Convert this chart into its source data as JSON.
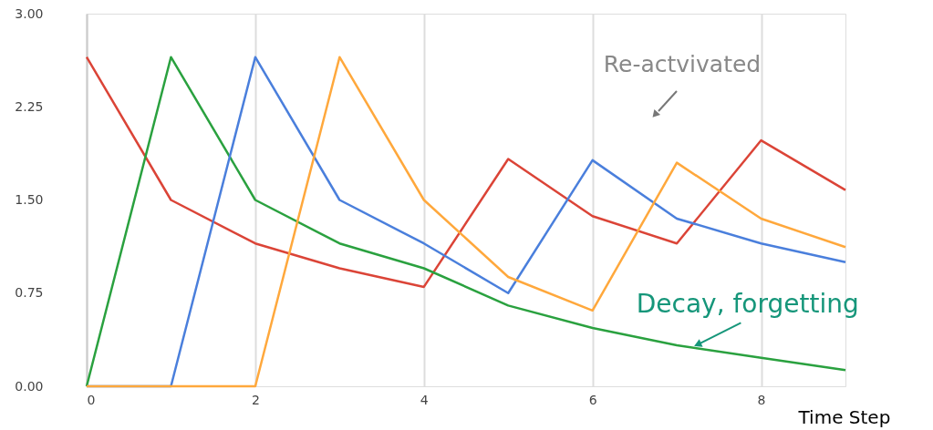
{
  "chart_data": {
    "type": "line",
    "xlabel": "Time Step",
    "x": [
      0,
      1,
      2,
      3,
      4,
      5,
      6,
      7,
      8,
      9
    ],
    "series": [
      {
        "color": "#db4437",
        "values": [
          2.65,
          1.5,
          1.15,
          0.95,
          0.8,
          1.83,
          1.37,
          1.15,
          1.98,
          1.58
        ]
      },
      {
        "color": "#2aa13f",
        "values": [
          0,
          2.65,
          1.5,
          1.15,
          0.95,
          0.65,
          0.47,
          0.33,
          0.23,
          0.13
        ]
      },
      {
        "color": "#4a7fdc",
        "values": [
          0,
          0,
          2.65,
          1.5,
          1.15,
          0.75,
          1.82,
          1.35,
          1.15,
          1.0
        ]
      },
      {
        "color": "#ffa83c",
        "values": [
          0,
          0,
          0,
          2.65,
          1.5,
          0.88,
          0.61,
          1.8,
          1.35,
          1.12
        ]
      }
    ],
    "xlim": [
      0,
      9
    ],
    "xticks": [
      0,
      2,
      4,
      6,
      8
    ],
    "ylim": [
      0,
      3
    ],
    "yticks": [
      {
        "value": 0,
        "label": "0.00"
      },
      {
        "value": 0.75,
        "label": "0.75"
      },
      {
        "value": 1.5,
        "label": "1.50"
      },
      {
        "value": 2.25,
        "label": "2.25"
      },
      {
        "value": 3,
        "label": "3.00"
      }
    ],
    "grid": "x",
    "marker": "none",
    "line_style": "solid",
    "annotations": [
      "Re-actvivated",
      {
        "text": "Decay, forgetting",
        "x": 7.26,
        "y": 0.34
      }
    ]
  }
}
